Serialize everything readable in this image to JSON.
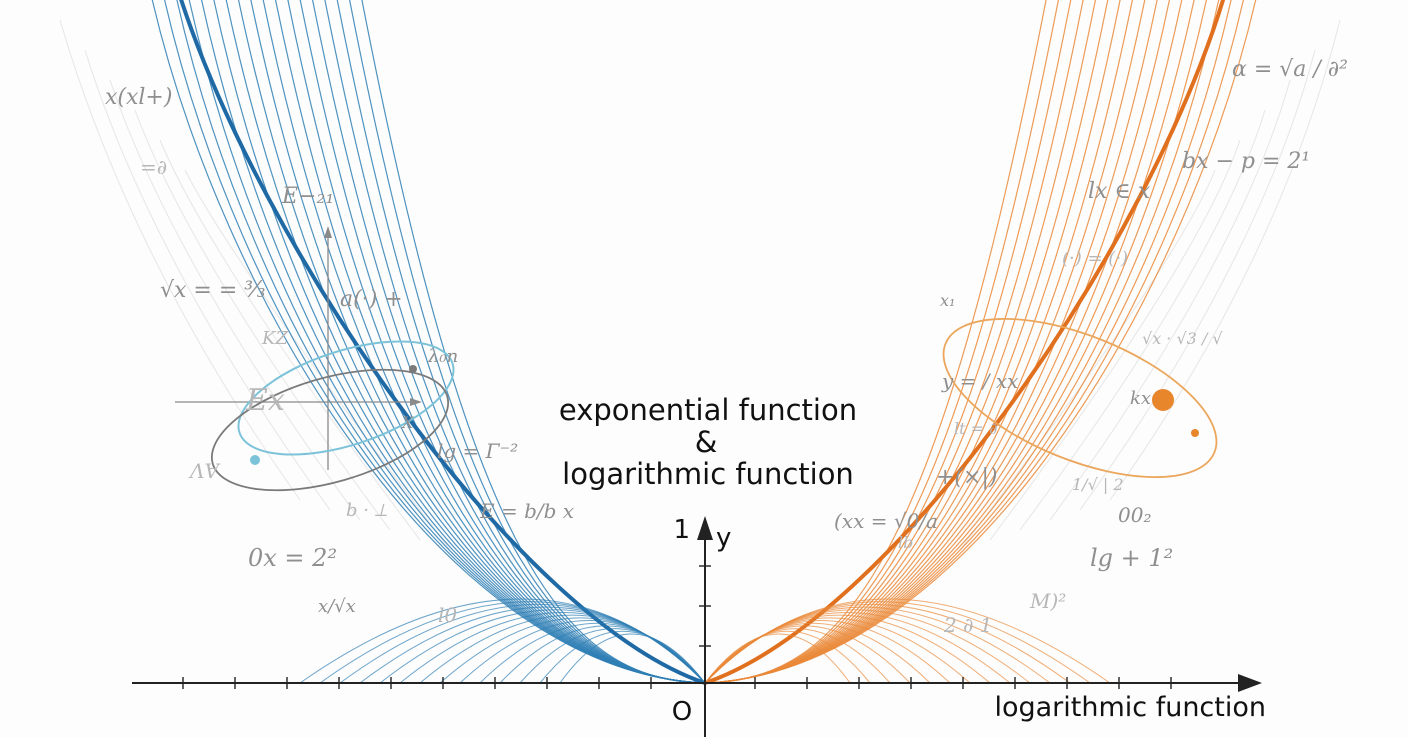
{
  "title": {
    "line1": "exponential function",
    "line2": "&",
    "line3": "logarithmic function"
  },
  "axes": {
    "y_label": "y",
    "y_tick_label": "1",
    "origin_label": "O",
    "x_label": "logarithmic function"
  },
  "colors": {
    "left_family": "#2f7fb5",
    "left_family_dark": "#1f6aa5",
    "right_family": "#ea8a3a",
    "right_family_dark": "#e0701e",
    "axis": "#222222",
    "formula_text": "#8f8f8f",
    "left_ellipse_outer": "#7cc3d9",
    "left_ellipse_inner": "#7a7a7a",
    "right_ellipse": "#eba65c"
  },
  "formulas_left": [
    "x(xl+)",
    "=∂",
    "E−₂₁",
    "√x = = ³⁄₃",
    "a(·) +",
    "KZ",
    "λ₀n",
    "Ex",
    "X",
    "lg = Γ⁻²",
    "ɅⱯ",
    "b · ⟂",
    "E = b/b x",
    "0x = 2²",
    "x/√x",
    "l0"
  ],
  "formulas_right": [
    "α = √a / ∂²",
    "bx − p = 2¹",
    "lx ∈ x",
    "(·) = (·)",
    "x₁",
    "√x · √3 / √",
    "y = / xx",
    "kx",
    "lt = ∂",
    "+(×|)",
    "1/√ | 2",
    "(xx = √0/a",
    "lb",
    "00₂",
    "lg + 1²",
    "M)²",
    "2 ∂ 1"
  ]
}
